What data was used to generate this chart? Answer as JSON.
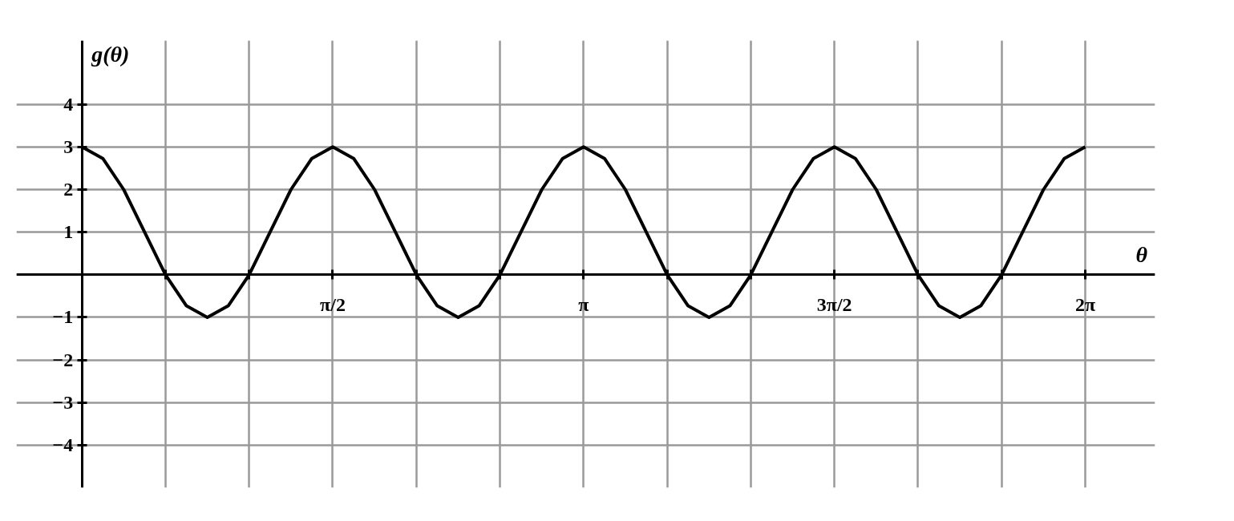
{
  "chart_data": {
    "type": "line",
    "xlabel": "θ",
    "ylabel": "g(θ)",
    "x": [
      0,
      0.1309,
      0.2618,
      0.3927,
      0.5236,
      0.6545,
      0.7854,
      0.9163,
      1.0472,
      1.1781,
      1.309,
      1.4399,
      1.5708,
      1.7017,
      1.8326,
      1.9635,
      2.0944,
      2.2253,
      2.3562,
      2.4871,
      2.618,
      2.7489,
      2.8798,
      3.0107,
      3.1416,
      3.2725,
      3.4034,
      3.5343,
      3.6652,
      3.7961,
      3.927,
      4.0579,
      4.1888,
      4.3197,
      4.4506,
      4.5815,
      4.7124,
      4.8433,
      4.9742,
      5.1051,
      5.236,
      5.3669,
      5.4978,
      5.6287,
      5.7596,
      5.8905,
      6.0214,
      6.1523,
      6.2832
    ],
    "series": [
      {
        "color": "#000000",
        "values": [
          3,
          2.73,
          2,
          1,
          0,
          -0.73,
          -1,
          -0.73,
          0,
          1,
          2,
          2.73,
          3,
          2.73,
          2,
          1,
          0,
          -0.73,
          -1,
          -0.73,
          0,
          1,
          2,
          2.73,
          3,
          2.73,
          2,
          1,
          0,
          -0.73,
          -1,
          -0.73,
          0,
          1,
          2,
          2.73,
          3,
          2.73,
          2,
          1,
          0,
          -0.73,
          -1,
          -0.73,
          0,
          1,
          2,
          2.73,
          3
        ]
      }
    ],
    "xlim": [
      -0.41,
      6.72
    ],
    "ylim": [
      -5,
      5.5
    ],
    "xticks": [
      {
        "value": 0.5236,
        "label": null
      },
      {
        "value": 1.0472,
        "label": null
      },
      {
        "value": 1.5708,
        "label": "π/2"
      },
      {
        "value": 2.0944,
        "label": null
      },
      {
        "value": 2.618,
        "label": null
      },
      {
        "value": 3.1416,
        "label": "π"
      },
      {
        "value": 3.6652,
        "label": null
      },
      {
        "value": 4.1888,
        "label": null
      },
      {
        "value": 4.7124,
        "label": "3π/2"
      },
      {
        "value": 5.236,
        "label": null
      },
      {
        "value": 5.7596,
        "label": null
      },
      {
        "value": 6.2832,
        "label": "2π"
      }
    ],
    "yticks": [
      {
        "value": -4,
        "label": "−4"
      },
      {
        "value": -3,
        "label": "−3"
      },
      {
        "value": -2,
        "label": "−2"
      },
      {
        "value": -1,
        "label": "−1"
      },
      {
        "value": 0,
        "label": null
      },
      1,
      2,
      3,
      4
    ],
    "grid": true,
    "marker": "none",
    "line_style": "solid"
  }
}
